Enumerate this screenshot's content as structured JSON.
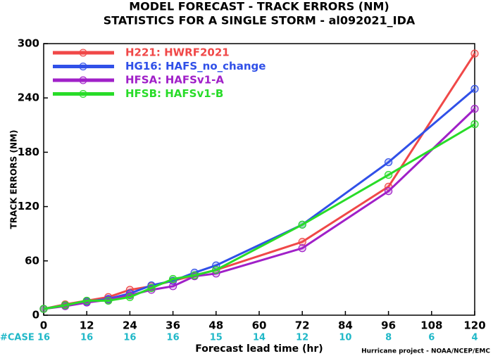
{
  "chart_data": {
    "type": "line",
    "title": "MODEL FORECAST - TRACK ERRORS (NM)",
    "subtitle": "STATISTICS FOR A SINGLE STORM - al092021_IDA",
    "x_label": "Forecast lead time (hr)",
    "y_label": "TRACK ERRORS (NM)",
    "x": [
      0,
      6,
      12,
      18,
      24,
      30,
      36,
      42,
      48,
      72,
      96,
      120
    ],
    "series": [
      {
        "name": "H221: HWRF2021",
        "color": "#f04848",
        "values": [
          7,
          12,
          16,
          20,
          28,
          32,
          38,
          44,
          50,
          81,
          142,
          289
        ]
      },
      {
        "name": "HG16: HAFS_no_change",
        "color": "#3050e8",
        "values": [
          7,
          11,
          15,
          18,
          24,
          33,
          38,
          47,
          55,
          100,
          169,
          250
        ]
      },
      {
        "name": "HFSA: HAFSv1-A",
        "color": "#a020c8",
        "values": [
          7,
          10,
          14,
          17,
          22,
          28,
          32,
          43,
          46,
          74,
          137,
          228
        ]
      },
      {
        "name": "HFSB: HAFSv1-B",
        "color": "#28dc28",
        "values": [
          7,
          11,
          16,
          16,
          20,
          30,
          40,
          44,
          50,
          100,
          155,
          211
        ]
      }
    ],
    "xlim": [
      0,
      120
    ],
    "xticks": [
      0,
      12,
      24,
      36,
      48,
      60,
      72,
      84,
      96,
      108,
      120
    ],
    "ylim": [
      0,
      300
    ],
    "yticks": [
      0,
      60,
      120,
      180,
      240,
      300
    ],
    "case_label": "#CASE",
    "cases": [
      16,
      16,
      16,
      16,
      15,
      14,
      12,
      10,
      8,
      6,
      4
    ],
    "footer": "Hurricane project - NOAA/NCEP/EMC",
    "legend": "upper left"
  }
}
